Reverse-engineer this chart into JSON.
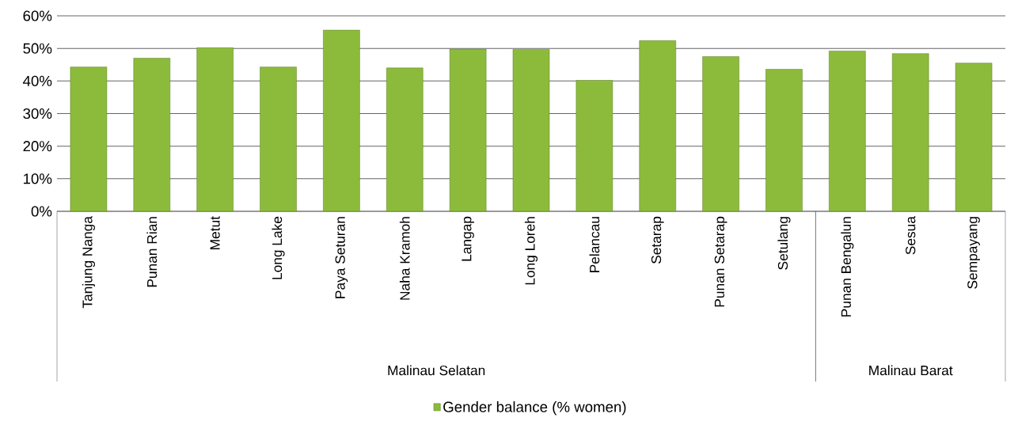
{
  "chart_data": {
    "type": "bar",
    "categories": [
      "Tanjung Nanga",
      "Punan Rian",
      "Metut",
      "Long Lake",
      "Paya Seturan",
      "Naha Kramoh",
      "Langap",
      "Long Loreh",
      "Pelancau",
      "Setarap",
      "Punan Setarap",
      "Setulang",
      "Punan Bengalun",
      "Sesua",
      "Sempayang"
    ],
    "series": [
      {
        "name": "Gender balance (% women)",
        "color": "#8cbb3c",
        "values": [
          44.3,
          47.0,
          50.2,
          44.3,
          55.6,
          44.0,
          49.8,
          49.7,
          40.2,
          52.4,
          47.5,
          43.6,
          49.2,
          48.4,
          45.5
        ]
      }
    ],
    "ylim": [
      0,
      60
    ],
    "yticks": [
      {
        "value": 0,
        "label": "0%"
      },
      {
        "value": 10,
        "label": "10%"
      },
      {
        "value": 20,
        "label": "20%"
      },
      {
        "value": 30,
        "label": "30%"
      },
      {
        "value": 40,
        "label": "40%"
      },
      {
        "value": 50,
        "label": "50%"
      },
      {
        "value": 60,
        "label": "60%"
      }
    ],
    "grid": "y",
    "legend": "bottom",
    "annotations": [
      "Malinau Selatan",
      "Malinau Barat"
    ]
  }
}
